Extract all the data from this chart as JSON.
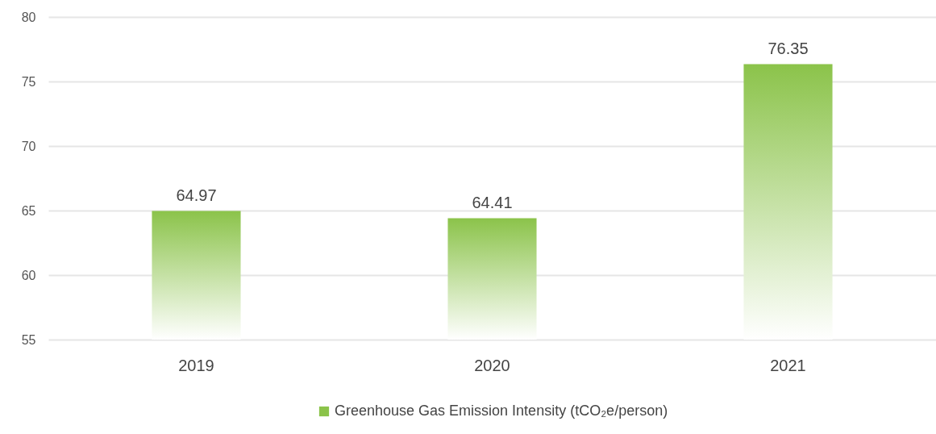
{
  "chart_data": {
    "type": "bar",
    "categories": [
      "2019",
      "2020",
      "2021"
    ],
    "series": [
      {
        "name": "Greenhouse Gas Emission Intensity (tCO₂e/person)",
        "color": "#8bc34a",
        "values": [
          64.97,
          64.41,
          76.35
        ]
      }
    ],
    "ylim": [
      55,
      80
    ],
    "yticks": [
      55,
      60,
      65,
      70,
      75,
      80
    ],
    "grid": "y",
    "legend": "bottom",
    "data_labels": true
  }
}
